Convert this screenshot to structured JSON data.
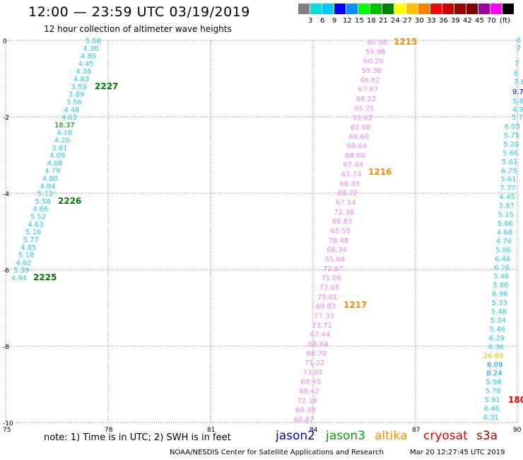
{
  "header": {
    "title": "12:00 — 23:59 UTC 03/19/2019",
    "subtitle": "12 hour collection of altimeter wave heights"
  },
  "color_scale": {
    "colors": [
      "#808080",
      "#00e0e0",
      "#00c8ff",
      "#0000ff",
      "#0090ff",
      "#00ff00",
      "#00c000",
      "#008000",
      "#ffff00",
      "#ffc000",
      "#ff8000",
      "#ff0000",
      "#d00000",
      "#a00000",
      "#800000",
      "#a000a0",
      "#ff00ff",
      "#000000"
    ],
    "labels": [
      "3",
      "6",
      "9",
      "12",
      "15",
      "18",
      "21",
      "24",
      "27",
      "30",
      "33",
      "36",
      "39",
      "42",
      "45",
      "70",
      "(ft)"
    ]
  },
  "axes": {
    "x_ticks": [
      "75",
      "78",
      "81",
      "84",
      "87",
      "90"
    ],
    "y_ticks": [
      "0",
      "-2",
      "-4",
      "-6",
      "-8",
      "-10"
    ]
  },
  "tracks": [
    {
      "color": "#1ecbdd",
      "label": "2227",
      "label_color": "#007a00",
      "values": [
        "5.58",
        "4.30",
        "4.80",
        "4.45",
        "4.36",
        "4.83",
        "3.59",
        "3.89",
        "3.56",
        "4.48",
        "4.03",
        "18.37",
        "4.18",
        "4.20",
        "3.81",
        "4.09",
        "4.08",
        "4.79",
        "4.80",
        "4.84",
        "5.12",
        "5.58",
        "4.66",
        "5.52",
        "4.63",
        "5.16",
        "5.77",
        "4.85",
        "5.18",
        "4.62",
        "5.39",
        "4.94"
      ]
    },
    {
      "color": "#ee82ee",
      "label": "1216",
      "label_color": "#f08c00",
      "values": [
        "60.98",
        "59.98",
        "60.20",
        "59.36",
        "46.82",
        "67.87",
        "68.22",
        "65.25",
        "55.62",
        "62.08",
        "68.60",
        "69.64",
        "68.60",
        "67.44",
        "62.74",
        "68.43",
        "68.72",
        "67.14",
        "72.36",
        "68.83",
        "65.55",
        "78.48",
        "66.34",
        "55.68",
        "72.87",
        "71.06",
        "72.65",
        "75.01",
        "69.83",
        "77.33",
        "73.71",
        "67.44",
        "68.64",
        "68.70",
        "71.22",
        "73.05",
        "68.45",
        "68.42",
        "72.18",
        "68.39",
        "68.87"
      ]
    },
    {
      "color": "#1ecbdd",
      "label": "",
      "label_color": "#000000",
      "values": [
        "6.03",
        "5.75",
        "5.20",
        "5.66",
        "5.61",
        "6.25",
        "5.61",
        "7.77",
        "4.45",
        "3.87",
        "5.15",
        "5.66",
        "4.68",
        "4.76",
        "5.06",
        "6.46",
        "6.26",
        "5.46",
        "5.80",
        "6.96",
        "5.33",
        "5.48",
        "5.34",
        "5.46",
        "6.29",
        "6.36",
        "26.69",
        "6.09",
        "8.24",
        "5.98",
        "5.78",
        "5.91",
        "6.48",
        "6.31"
      ]
    }
  ],
  "track_labels": [
    "2227",
    "2226",
    "2225",
    "1215",
    "1216",
    "1217",
    "180"
  ],
  "edge_values": [
    "6",
    "7",
    "7",
    "6",
    "7.8",
    "9.7",
    "5.8",
    "4.9",
    "5.7"
  ],
  "notes": {
    "note": "note:  1) Time is in UTC;  2) SWH is in feet",
    "satellites": [
      {
        "name": "jason2",
        "color": "#0000cc"
      },
      {
        "name": "jason3",
        "color": "#00a000"
      },
      {
        "name": "altika",
        "color": "#ff8c00"
      },
      {
        "name": "cryosat",
        "color": "#e00000"
      },
      {
        "name": "s3a",
        "color": "#a00000"
      }
    ],
    "credit": "NOAA/NESDIS Center for Satellite Applications and Research",
    "timestamp": "Mar 20 12:27:45 UTC 2019"
  }
}
